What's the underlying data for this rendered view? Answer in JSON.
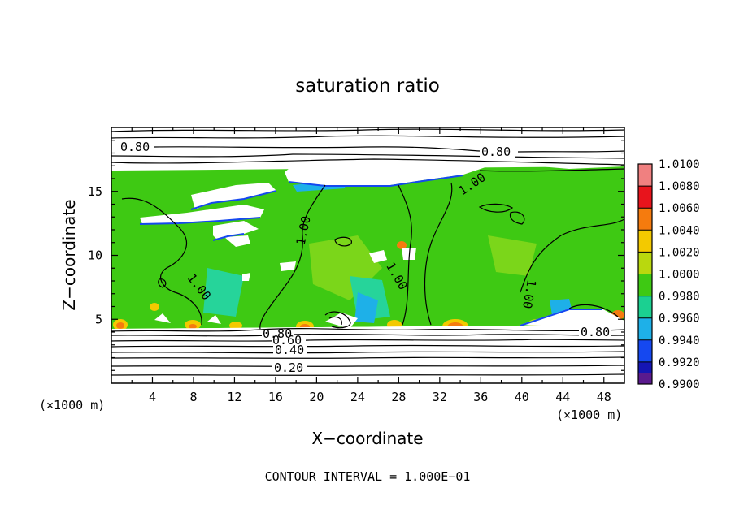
{
  "chart_data": {
    "type": "heatmap",
    "title": "saturation ratio",
    "xlabel": "X−coordinate",
    "ylabel": "Z−coordinate",
    "x_unit_left": "(×1000 m)",
    "x_unit_right": "(×1000 m)",
    "xlim": [
      0,
      50
    ],
    "ylim": [
      0,
      20
    ],
    "x_ticks": [
      4,
      8,
      12,
      16,
      20,
      24,
      28,
      32,
      36,
      40,
      44,
      48
    ],
    "x_tick_labels": [
      "4",
      "8",
      "12",
      "16",
      "20",
      "24",
      "28",
      "32",
      "36",
      "40",
      "44",
      "48"
    ],
    "y_ticks": [
      5,
      10,
      15
    ],
    "y_tick_labels": [
      "5",
      "10",
      "15"
    ],
    "footer": "CONTOUR INTERVAL = 1.000E−01",
    "colorbar": {
      "levels": [
        "1.0100",
        "1.0080",
        "1.0060",
        "1.0040",
        "1.0020",
        "1.0000",
        "0.9980",
        "0.9960",
        "0.9940",
        "0.9920",
        "0.9900"
      ],
      "colors": [
        "#f08080",
        "#e8141c",
        "#f57b0e",
        "#f3c900",
        "#b9d80e",
        "#3ec913",
        "#1bd091",
        "#1eb0e8",
        "#1548f0",
        "#1515b4",
        "#5a1a8e"
      ]
    },
    "contour_labels": [
      {
        "text": "0.80",
        "x": 2.3,
        "z": 18.0
      },
      {
        "text": "0.80",
        "x": 36.4,
        "z": 17.7
      },
      {
        "text": "1.00",
        "x": 34.0,
        "z": 15.6
      },
      {
        "text": "1.00",
        "x": 18.5,
        "z": 11.0
      },
      {
        "text": "1.00",
        "x": 27.8,
        "z": 8.0
      },
      {
        "text": "1.00",
        "x": 8.1,
        "z": 7.0
      },
      {
        "text": "1.00",
        "x": 40.6,
        "z": 6.8
      },
      {
        "text": "0.80",
        "x": 47.5,
        "z": 4.0
      },
      {
        "text": "0.80",
        "x": 16.6,
        "z": 3.9
      },
      {
        "text": "0.60",
        "x": 17.7,
        "z": 3.5
      },
      {
        "text": "0.40",
        "x": 17.9,
        "z": 2.6
      },
      {
        "text": "0.20",
        "x": 17.5,
        "z": 1.3
      }
    ]
  }
}
